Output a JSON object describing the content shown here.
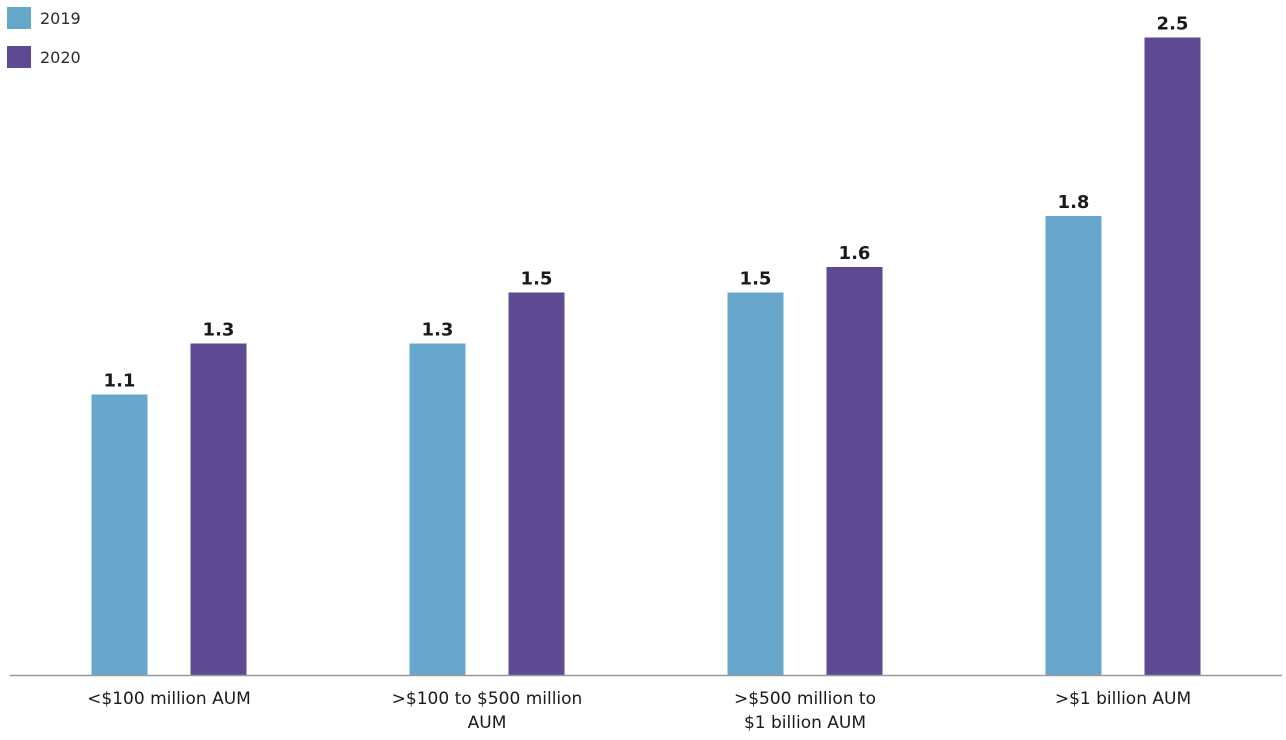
{
  "chart_data": {
    "type": "bar",
    "title": "",
    "xlabel": "",
    "ylabel": "",
    "categories": [
      [
        "<$100 million AUM"
      ],
      [
        ">$100 to $500 million",
        "AUM"
      ],
      [
        ">$500 million to",
        "$1 billion AUM"
      ],
      [
        ">$1 billion AUM"
      ]
    ],
    "series": [
      {
        "name": "2019",
        "color": "#67a7cc",
        "values": [
          1.1,
          1.3,
          1.5,
          1.8
        ]
      },
      {
        "name": "2020",
        "color": "#5e4993",
        "values": [
          1.3,
          1.5,
          1.6,
          2.5
        ]
      }
    ],
    "ylim": [
      0,
      2.6
    ],
    "grid": false,
    "legend_position": "top-left",
    "axis_color": "#9a9a9a"
  }
}
